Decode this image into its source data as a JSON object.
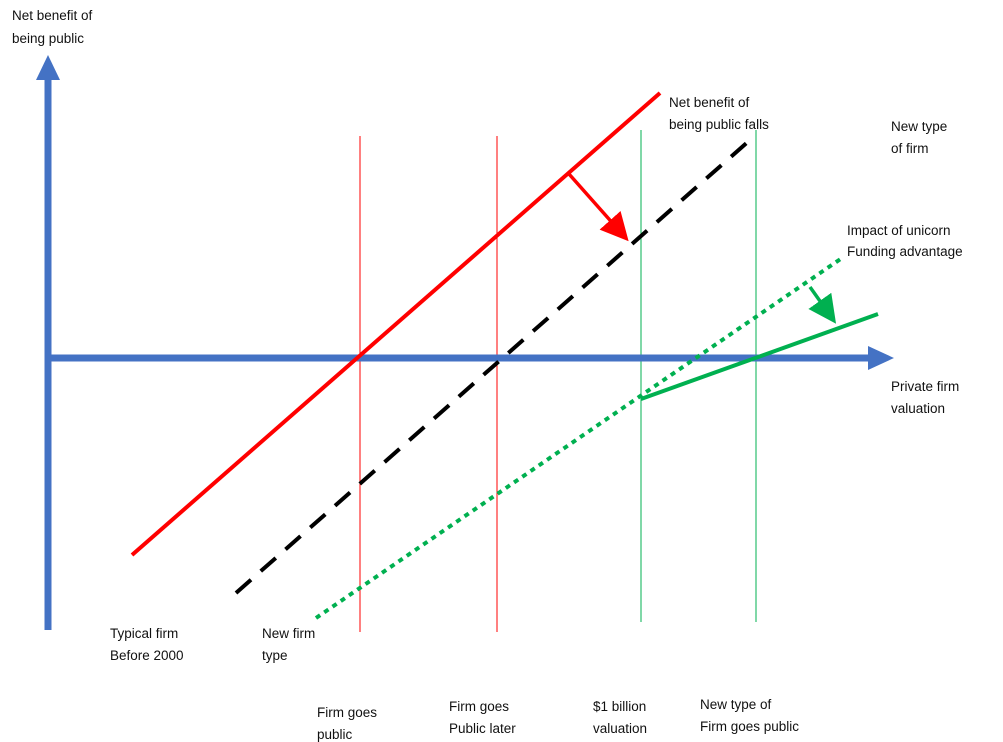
{
  "axes": {
    "y_label": [
      "Net benefit of",
      "being public"
    ],
    "x_label": [
      "Private firm",
      "valuation"
    ]
  },
  "lines": {
    "red_label": [
      "Net benefit of",
      "being public falls"
    ],
    "black_label": [
      "New type",
      "of firm"
    ],
    "green_label": [
      "Impact of unicorn",
      "Funding advantage"
    ]
  },
  "bottom_labels": {
    "typical_firm": [
      "Typical firm",
      "Before 2000"
    ],
    "new_firm_type": [
      "New firm",
      "type"
    ],
    "firm_goes_public": [
      "Firm goes",
      "public"
    ],
    "firm_goes_public_later": [
      "Firm goes",
      "Public later"
    ],
    "billion_valuation": [
      "$1 billion",
      "valuation"
    ],
    "new_type_goes_public": [
      "New type of",
      "Firm goes public"
    ]
  },
  "colors": {
    "axis": "#4472c4",
    "red": "#ff0000",
    "black_dashed": "#000000",
    "green": "#00b050",
    "thin_green": "#00b050",
    "thin_red": "#ff0000"
  }
}
